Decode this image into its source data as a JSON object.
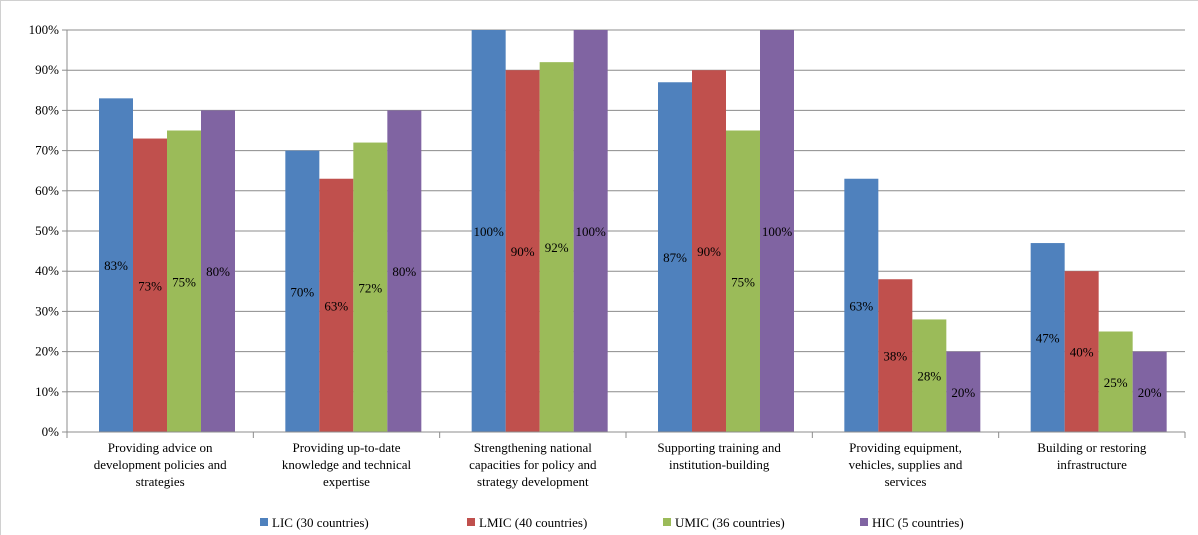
{
  "chart_data": {
    "type": "bar",
    "categories": [
      [
        "Providing advice on",
        "development policies and",
        "strategies"
      ],
      [
        "Providing up-to-date",
        "knowledge and technical",
        "expertise"
      ],
      [
        "Strengthening national",
        "capacities for policy and",
        "strategy development"
      ],
      [
        "Supporting training and",
        "institution-building"
      ],
      [
        "Providing equipment,",
        "vehicles, supplies and",
        "services"
      ],
      [
        "Building or restoring",
        "infrastructure"
      ]
    ],
    "series": [
      {
        "name": "LIC (30 countries)",
        "color": "#4f81bd",
        "values": [
          83,
          70,
          100,
          87,
          63,
          47
        ],
        "labels": [
          "83%",
          "70%",
          "100%",
          "87%",
          "63%",
          "47%"
        ]
      },
      {
        "name": "LMIC (40 countries)",
        "color": "#c0504d",
        "values": [
          73,
          63,
          90,
          90,
          38,
          40
        ],
        "labels": [
          "73%",
          "63%",
          "90%",
          "90%",
          "38%",
          "40%"
        ]
      },
      {
        "name": "UMIC (36 countries)",
        "color": "#9bbb59",
        "values": [
          75,
          72,
          92,
          75,
          28,
          25
        ],
        "labels": [
          "75%",
          "72%",
          "92%",
          "75%",
          "28%",
          "25%"
        ]
      },
      {
        "name": "HIC (5 countries)",
        "color": "#8064a2",
        "values": [
          80,
          80,
          100,
          100,
          20,
          20
        ],
        "labels": [
          "80%",
          "80%",
          "100%",
          "100%",
          "20%",
          "20%"
        ]
      }
    ],
    "y_ticks": [
      {
        "value": 0,
        "label": "0%"
      },
      {
        "value": 10,
        "label": "10%"
      },
      {
        "value": 20,
        "label": "20%"
      },
      {
        "value": 30,
        "label": "30%"
      },
      {
        "value": 40,
        "label": "40%"
      },
      {
        "value": 50,
        "label": "50%"
      },
      {
        "value": 60,
        "label": "60%"
      },
      {
        "value": 70,
        "label": "70%"
      },
      {
        "value": 80,
        "label": "80%"
      },
      {
        "value": 90,
        "label": "90%"
      },
      {
        "value": 100,
        "label": "100%"
      }
    ],
    "ylim": [
      0,
      100
    ],
    "grid": true,
    "legend_position": "bottom",
    "title": "",
    "xlabel": "",
    "ylabel": ""
  }
}
